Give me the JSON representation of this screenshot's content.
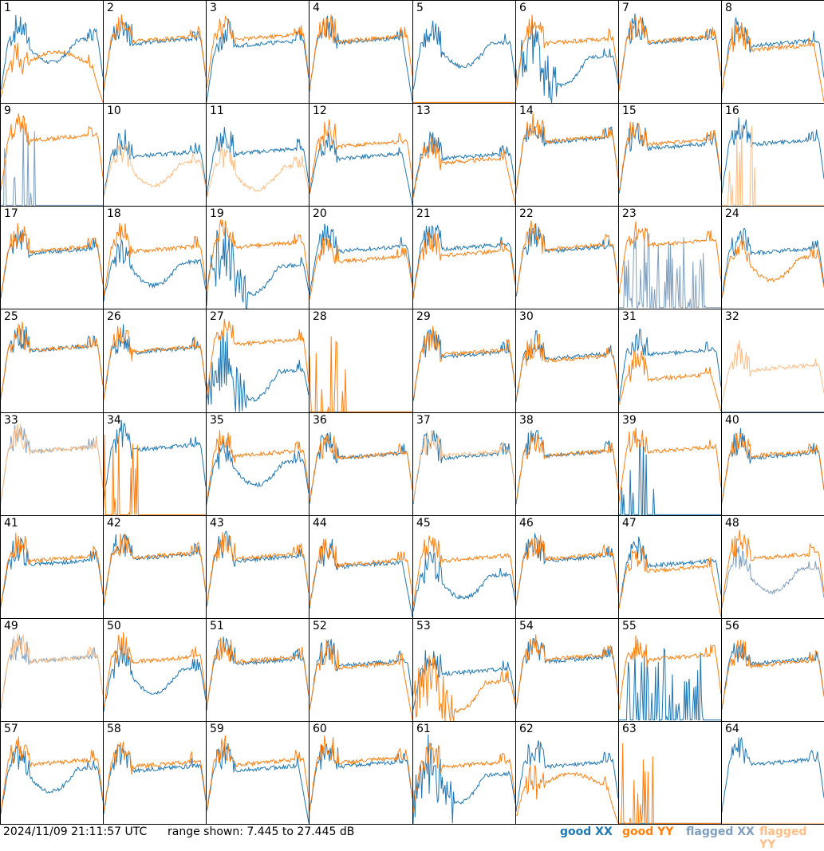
{
  "footer": {
    "timestamp": "2024/11/09 21:11:57 UTC",
    "range_text": "range shown: 7.445 to 27.445 dB"
  },
  "legend": [
    {
      "label": "good",
      "pol": "XX",
      "color": "#1f77b4"
    },
    {
      "label": "good",
      "pol": "YY",
      "color": "#ff7f0e"
    },
    {
      "label": "flagged",
      "pol": "XX",
      "color": "#7f9fbf"
    },
    {
      "label": "flagged",
      "pol": "YY",
      "color": "#ffbf87"
    }
  ],
  "chart_data": {
    "type": "line",
    "layout": "8x8 small multiples",
    "ylim_db": [
      7.445,
      27.445
    ],
    "x": "frequency channel (unlabeled)",
    "colors": {
      "good_xx": "#1f77b4",
      "good_yy": "#ff7f0e",
      "flagged_xx": "#7f9fbf",
      "flagged_yy": "#ffbf87"
    },
    "panels": [
      {
        "id": 1,
        "xx": {
          "flag": false,
          "shape": "dip_mid",
          "level": 0.62
        },
        "yy": {
          "flag": false,
          "shape": "collapse_low",
          "level": 0.35
        }
      },
      {
        "id": 2,
        "xx": {
          "flag": false,
          "shape": "normal",
          "level": 0.62
        },
        "yy": {
          "flag": false,
          "shape": "normal",
          "level": 0.64
        }
      },
      {
        "id": 3,
        "xx": {
          "flag": false,
          "shape": "normal_lowend",
          "level": 0.6
        },
        "yy": {
          "flag": false,
          "shape": "normal",
          "level": 0.66
        }
      },
      {
        "id": 4,
        "xx": {
          "flag": false,
          "shape": "normal_dropend",
          "level": 0.63
        },
        "yy": {
          "flag": false,
          "shape": "normal",
          "level": 0.64
        }
      },
      {
        "id": 5,
        "xx": {
          "flag": false,
          "shape": "dip_mid",
          "level": 0.58
        },
        "yy": {
          "flag": false,
          "shape": "flat_low",
          "level": 0.01
        }
      },
      {
        "id": 6,
        "xx": {
          "flag": false,
          "shape": "noisy_dip",
          "level": 0.45
        },
        "yy": {
          "flag": false,
          "shape": "normal",
          "level": 0.62
        }
      },
      {
        "id": 7,
        "xx": {
          "flag": false,
          "shape": "normal",
          "level": 0.63
        },
        "yy": {
          "flag": false,
          "shape": "normal",
          "level": 0.64
        }
      },
      {
        "id": 8,
        "xx": {
          "flag": false,
          "shape": "normal",
          "level": 0.6
        },
        "yy": {
          "flag": false,
          "shape": "normal_dropend",
          "level": 0.56
        }
      },
      {
        "id": 9,
        "xx": {
          "flag": true,
          "shape": "spikes",
          "level": 0.02
        },
        "yy": {
          "flag": false,
          "shape": "normal",
          "level": 0.68
        }
      },
      {
        "id": 10,
        "xx": {
          "flag": false,
          "shape": "normal",
          "level": 0.52
        },
        "yy": {
          "flag": true,
          "shape": "dip_mid",
          "level": 0.42
        }
      },
      {
        "id": 11,
        "xx": {
          "flag": false,
          "shape": "normal",
          "level": 0.55
        },
        "yy": {
          "flag": true,
          "shape": "dip_mid",
          "level": 0.38
        }
      },
      {
        "id": 12,
        "xx": {
          "flag": false,
          "shape": "normal_dropend",
          "level": 0.5
        },
        "yy": {
          "flag": false,
          "shape": "normal",
          "level": 0.62
        }
      },
      {
        "id": 13,
        "xx": {
          "flag": false,
          "shape": "normal",
          "level": 0.5
        },
        "yy": {
          "flag": false,
          "shape": "normal_dropend",
          "level": 0.46
        }
      },
      {
        "id": 14,
        "xx": {
          "flag": false,
          "shape": "normal",
          "level": 0.66
        },
        "yy": {
          "flag": false,
          "shape": "normal",
          "level": 0.67
        }
      },
      {
        "id": 15,
        "xx": {
          "flag": false,
          "shape": "normal",
          "level": 0.6
        },
        "yy": {
          "flag": false,
          "shape": "normal",
          "level": 0.64
        }
      },
      {
        "id": 16,
        "xx": {
          "flag": false,
          "shape": "normal",
          "level": 0.64
        },
        "yy": {
          "flag": true,
          "shape": "spikes",
          "level": 0.01
        }
      },
      {
        "id": 17,
        "xx": {
          "flag": false,
          "shape": "normal",
          "level": 0.58
        },
        "yy": {
          "flag": false,
          "shape": "normal",
          "level": 0.6
        }
      },
      {
        "id": 18,
        "xx": {
          "flag": false,
          "shape": "dip_mid",
          "level": 0.45
        },
        "yy": {
          "flag": false,
          "shape": "normal",
          "level": 0.6
        }
      },
      {
        "id": 19,
        "xx": {
          "flag": false,
          "shape": "noisy_dip",
          "level": 0.42
        },
        "yy": {
          "flag": false,
          "shape": "normal",
          "level": 0.64
        }
      },
      {
        "id": 20,
        "xx": {
          "flag": false,
          "shape": "normal",
          "level": 0.6
        },
        "yy": {
          "flag": false,
          "shape": "normal",
          "level": 0.5
        }
      },
      {
        "id": 21,
        "xx": {
          "flag": false,
          "shape": "normal",
          "level": 0.62
        },
        "yy": {
          "flag": false,
          "shape": "normal",
          "level": 0.56
        }
      },
      {
        "id": 22,
        "xx": {
          "flag": false,
          "shape": "normal",
          "level": 0.6
        },
        "yy": {
          "flag": false,
          "shape": "normal",
          "level": 0.62
        }
      },
      {
        "id": 23,
        "xx": {
          "flag": true,
          "shape": "spikes_wide",
          "level": 0.35
        },
        "yy": {
          "flag": false,
          "shape": "normal",
          "level": 0.66
        }
      },
      {
        "id": 24,
        "xx": {
          "flag": false,
          "shape": "normal",
          "level": 0.58
        },
        "yy": {
          "flag": false,
          "shape": "dip_mid",
          "level": 0.5
        }
      },
      {
        "id": 25,
        "xx": {
          "flag": false,
          "shape": "normal",
          "level": 0.64
        },
        "yy": {
          "flag": false,
          "shape": "normal",
          "level": 0.64
        }
      },
      {
        "id": 26,
        "xx": {
          "flag": false,
          "shape": "normal",
          "level": 0.62
        },
        "yy": {
          "flag": false,
          "shape": "normal",
          "level": 0.63
        }
      },
      {
        "id": 27,
        "xx": {
          "flag": false,
          "shape": "noisy_dip",
          "level": 0.4
        },
        "yy": {
          "flag": false,
          "shape": "normal",
          "level": 0.7
        }
      },
      {
        "id": 28,
        "xx": {
          "flag": false,
          "shape": "flat_low",
          "level": 0.01
        },
        "yy": {
          "flag": false,
          "shape": "spikes",
          "level": 0.02
        }
      },
      {
        "id": 29,
        "xx": {
          "flag": false,
          "shape": "normal",
          "level": 0.58
        },
        "yy": {
          "flag": false,
          "shape": "normal",
          "level": 0.6
        }
      },
      {
        "id": 30,
        "xx": {
          "flag": false,
          "shape": "normal",
          "level": 0.56
        },
        "yy": {
          "flag": false,
          "shape": "normal",
          "level": 0.54
        }
      },
      {
        "id": 31,
        "xx": {
          "flag": false,
          "shape": "normal",
          "level": 0.6
        },
        "yy": {
          "flag": false,
          "shape": "normal_dropend",
          "level": 0.36
        }
      },
      {
        "id": 32,
        "xx": {
          "flag": true,
          "shape": "flat_low",
          "level": 0.01
        },
        "yy": {
          "flag": true,
          "shape": "normal",
          "level": 0.45
        }
      },
      {
        "id": 33,
        "xx": {
          "flag": true,
          "shape": "normal",
          "level": 0.66
        },
        "yy": {
          "flag": true,
          "shape": "normal",
          "level": 0.66
        }
      },
      {
        "id": 34,
        "xx": {
          "flag": false,
          "shape": "normal",
          "level": 0.68
        },
        "yy": {
          "flag": false,
          "shape": "spikes",
          "level": 0.02
        }
      },
      {
        "id": 35,
        "xx": {
          "flag": false,
          "shape": "dip_mid",
          "level": 0.52
        },
        "yy": {
          "flag": false,
          "shape": "normal",
          "level": 0.62
        }
      },
      {
        "id": 36,
        "xx": {
          "flag": false,
          "shape": "normal",
          "level": 0.6
        },
        "yy": {
          "flag": false,
          "shape": "normal",
          "level": 0.6
        }
      },
      {
        "id": 37,
        "xx": {
          "flag": false,
          "shape": "normal",
          "level": 0.6
        },
        "yy": {
          "flag": true,
          "shape": "normal",
          "level": 0.62
        }
      },
      {
        "id": 38,
        "xx": {
          "flag": false,
          "shape": "normal",
          "level": 0.62
        },
        "yy": {
          "flag": false,
          "shape": "normal",
          "level": 0.62
        }
      },
      {
        "id": 39,
        "xx": {
          "flag": false,
          "shape": "spikes",
          "level": 0.02
        },
        "yy": {
          "flag": false,
          "shape": "normal",
          "level": 0.66
        }
      },
      {
        "id": 40,
        "xx": {
          "flag": false,
          "shape": "normal",
          "level": 0.6
        },
        "yy": {
          "flag": false,
          "shape": "normal",
          "level": 0.62
        }
      },
      {
        "id": 41,
        "xx": {
          "flag": false,
          "shape": "normal",
          "level": 0.56
        },
        "yy": {
          "flag": false,
          "shape": "normal",
          "level": 0.6
        }
      },
      {
        "id": 42,
        "xx": {
          "flag": false,
          "shape": "normal",
          "level": 0.62
        },
        "yy": {
          "flag": false,
          "shape": "normal",
          "level": 0.63
        }
      },
      {
        "id": 43,
        "xx": {
          "flag": false,
          "shape": "normal",
          "level": 0.6
        },
        "yy": {
          "flag": false,
          "shape": "normal",
          "level": 0.62
        }
      },
      {
        "id": 44,
        "xx": {
          "flag": false,
          "shape": "normal_dropend",
          "level": 0.54
        },
        "yy": {
          "flag": false,
          "shape": "normal",
          "level": 0.56
        }
      },
      {
        "id": 45,
        "xx": {
          "flag": false,
          "shape": "dip_mid",
          "level": 0.42
        },
        "yy": {
          "flag": false,
          "shape": "normal",
          "level": 0.6
        }
      },
      {
        "id": 46,
        "xx": {
          "flag": false,
          "shape": "normal",
          "level": 0.6
        },
        "yy": {
          "flag": false,
          "shape": "normal",
          "level": 0.62
        }
      },
      {
        "id": 47,
        "xx": {
          "flag": false,
          "shape": "normal",
          "level": 0.55
        },
        "yy": {
          "flag": false,
          "shape": "normal_dropend",
          "level": 0.5
        }
      },
      {
        "id": 48,
        "xx": {
          "flag": true,
          "shape": "dip_mid",
          "level": 0.48
        },
        "yy": {
          "flag": false,
          "shape": "normal",
          "level": 0.62
        }
      },
      {
        "id": 49,
        "xx": {
          "flag": true,
          "shape": "normal",
          "level": 0.62
        },
        "yy": {
          "flag": true,
          "shape": "normal",
          "level": 0.62
        }
      },
      {
        "id": 50,
        "xx": {
          "flag": false,
          "shape": "dip_mid",
          "level": 0.5
        },
        "yy": {
          "flag": false,
          "shape": "normal",
          "level": 0.62
        }
      },
      {
        "id": 51,
        "xx": {
          "flag": false,
          "shape": "normal",
          "level": 0.6
        },
        "yy": {
          "flag": false,
          "shape": "normal",
          "level": 0.62
        }
      },
      {
        "id": 52,
        "xx": {
          "flag": false,
          "shape": "normal",
          "level": 0.58
        },
        "yy": {
          "flag": false,
          "shape": "normal_dropend",
          "level": 0.56
        }
      },
      {
        "id": 53,
        "xx": {
          "flag": false,
          "shape": "normal",
          "level": 0.5
        },
        "yy": {
          "flag": false,
          "shape": "noisy_dip",
          "level": 0.38
        }
      },
      {
        "id": 54,
        "xx": {
          "flag": false,
          "shape": "normal",
          "level": 0.62
        },
        "yy": {
          "flag": false,
          "shape": "normal",
          "level": 0.64
        }
      },
      {
        "id": 55,
        "xx": {
          "flag": false,
          "shape": "spikes_wide",
          "level": 0.15
        },
        "yy": {
          "flag": false,
          "shape": "normal",
          "level": 0.64
        }
      },
      {
        "id": 56,
        "xx": {
          "flag": false,
          "shape": "normal",
          "level": 0.6
        },
        "yy": {
          "flag": false,
          "shape": "normal",
          "level": 0.58
        }
      },
      {
        "id": 57,
        "xx": {
          "flag": false,
          "shape": "dip_mid",
          "level": 0.54
        },
        "yy": {
          "flag": false,
          "shape": "normal",
          "level": 0.62
        }
      },
      {
        "id": 58,
        "xx": {
          "flag": false,
          "shape": "normal",
          "level": 0.56
        },
        "yy": {
          "flag": false,
          "shape": "normal",
          "level": 0.6
        }
      },
      {
        "id": 59,
        "xx": {
          "flag": false,
          "shape": "normal_dropend",
          "level": 0.56
        },
        "yy": {
          "flag": false,
          "shape": "normal",
          "level": 0.62
        }
      },
      {
        "id": 60,
        "xx": {
          "flag": false,
          "shape": "normal",
          "level": 0.6
        },
        "yy": {
          "flag": false,
          "shape": "normal",
          "level": 0.64
        }
      },
      {
        "id": 61,
        "xx": {
          "flag": false,
          "shape": "noisy_dip",
          "level": 0.48
        },
        "yy": {
          "flag": false,
          "shape": "normal",
          "level": 0.6
        }
      },
      {
        "id": 62,
        "xx": {
          "flag": false,
          "shape": "normal",
          "level": 0.6
        },
        "yy": {
          "flag": false,
          "shape": "collapse_low",
          "level": 0.34
        }
      },
      {
        "id": 63,
        "xx": {
          "flag": false,
          "shape": "flat_low",
          "level": 0.01
        },
        "yy": {
          "flag": false,
          "shape": "spikes",
          "level": 0.02
        }
      },
      {
        "id": 64,
        "xx": {
          "flag": false,
          "shape": "normal",
          "level": 0.62
        },
        "yy": {
          "flag": true,
          "shape": "flat_low",
          "level": 0.01
        }
      }
    ]
  }
}
